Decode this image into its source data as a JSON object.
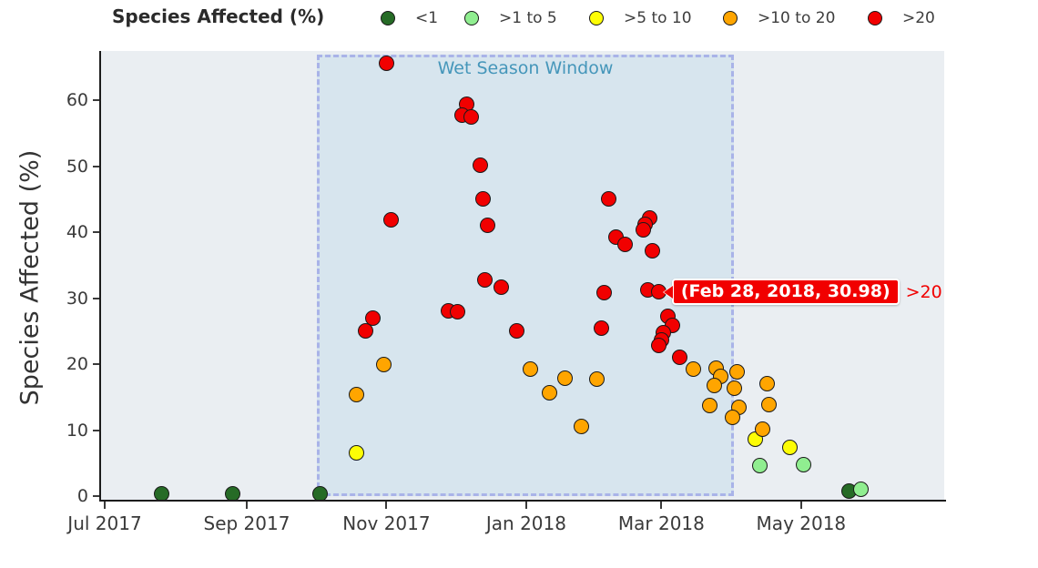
{
  "legend": {
    "title": "Species Affected (%)",
    "items": [
      {
        "label": "<1",
        "color": "#266b26"
      },
      {
        "label": ">1 to 5",
        "color": "#90ee90"
      },
      {
        "label": ">5 to 10",
        "color": "#fdfd05"
      },
      {
        "label": ">10 to 20",
        "color": "#ffa500"
      },
      {
        "label": ">20",
        "color": "#f10000"
      }
    ]
  },
  "chart_data": {
    "type": "scatter",
    "title": "",
    "xlabel": "",
    "ylabel": "Species Affected (%)",
    "x_ticks": [
      {
        "label": "Jul 2017",
        "date": "2017-07-01"
      },
      {
        "label": "Sep 2017",
        "date": "2017-09-01"
      },
      {
        "label": "Nov 2017",
        "date": "2017-11-01"
      },
      {
        "label": "Jan 2018",
        "date": "2018-01-01"
      },
      {
        "label": "Mar 2018",
        "date": "2018-03-01"
      },
      {
        "label": "May 2018",
        "date": "2018-05-01"
      }
    ],
    "y_ticks": [
      0,
      10,
      20,
      30,
      40,
      50,
      60
    ],
    "x_range": [
      "2017-06-29",
      "2018-07-02"
    ],
    "y_range": [
      0,
      67.5
    ],
    "grid": false,
    "legend_position": "top",
    "annotation": {
      "label": "Wet Season Window",
      "x_start": "2017-10-01",
      "x_end": "2018-04-01"
    },
    "tooltip": {
      "text": "(Feb 28, 2018, 30.98)",
      "series": ">20",
      "date": "2018-02-28",
      "value": 30.98
    },
    "color_thresholds": [
      {
        "max": 1,
        "color": "#266b26"
      },
      {
        "max": 5,
        "color": "#90ee90"
      },
      {
        "max": 10,
        "color": "#fdfd05"
      },
      {
        "max": 20,
        "color": "#ffa500"
      },
      {
        "max": 999,
        "color": "#f10000"
      }
    ],
    "points": [
      {
        "date": "2017-07-26",
        "value": 0.3
      },
      {
        "date": "2017-08-26",
        "value": 0.3
      },
      {
        "date": "2017-10-03",
        "value": 0.3
      },
      {
        "date": "2018-05-22",
        "value": 0.8
      },
      {
        "date": "2018-05-27",
        "value": 1.1
      },
      {
        "date": "2018-04-13",
        "value": 4.6
      },
      {
        "date": "2018-05-02",
        "value": 4.7
      },
      {
        "date": "2017-10-19",
        "value": 6.5
      },
      {
        "date": "2018-04-11",
        "value": 8.6
      },
      {
        "date": "2018-04-26",
        "value": 7.4
      },
      {
        "date": "2017-10-31",
        "value": 19.9
      },
      {
        "date": "2017-10-19",
        "value": 15.4
      },
      {
        "date": "2018-01-03",
        "value": 19.2
      },
      {
        "date": "2018-01-11",
        "value": 15.6
      },
      {
        "date": "2018-01-18",
        "value": 17.9
      },
      {
        "date": "2018-01-25",
        "value": 10.5
      },
      {
        "date": "2018-02-01",
        "value": 17.7
      },
      {
        "date": "2018-03-15",
        "value": 19.3
      },
      {
        "date": "2018-03-25",
        "value": 19.4
      },
      {
        "date": "2018-03-27",
        "value": 18.2
      },
      {
        "date": "2018-04-03",
        "value": 18.8
      },
      {
        "date": "2018-03-24",
        "value": 16.7
      },
      {
        "date": "2018-04-02",
        "value": 16.3
      },
      {
        "date": "2018-04-16",
        "value": 17.0
      },
      {
        "date": "2018-03-22",
        "value": 13.7
      },
      {
        "date": "2018-04-04",
        "value": 13.4
      },
      {
        "date": "2018-04-17",
        "value": 13.8
      },
      {
        "date": "2018-04-01",
        "value": 11.9
      },
      {
        "date": "2018-04-14",
        "value": 10.1
      },
      {
        "date": "2017-11-01",
        "value": 65.6
      },
      {
        "date": "2017-12-06",
        "value": 59.4
      },
      {
        "date": "2017-12-04",
        "value": 57.7
      },
      {
        "date": "2017-12-08",
        "value": 57.5
      },
      {
        "date": "2017-12-12",
        "value": 50.1
      },
      {
        "date": "2017-12-13",
        "value": 45.1
      },
      {
        "date": "2017-12-15",
        "value": 41.1
      },
      {
        "date": "2017-11-03",
        "value": 41.8
      },
      {
        "date": "2017-11-28",
        "value": 28.1
      },
      {
        "date": "2017-12-02",
        "value": 27.9
      },
      {
        "date": "2017-10-26",
        "value": 26.9
      },
      {
        "date": "2017-10-23",
        "value": 25.1
      },
      {
        "date": "2017-12-14",
        "value": 32.7
      },
      {
        "date": "2017-12-21",
        "value": 31.6
      },
      {
        "date": "2017-12-28",
        "value": 25.1
      },
      {
        "date": "2018-02-06",
        "value": 45.1
      },
      {
        "date": "2018-02-24",
        "value": 42.2
      },
      {
        "date": "2018-02-22",
        "value": 41.2
      },
      {
        "date": "2018-02-21",
        "value": 40.4
      },
      {
        "date": "2018-02-09",
        "value": 39.2
      },
      {
        "date": "2018-02-13",
        "value": 38.2
      },
      {
        "date": "2018-02-25",
        "value": 37.2
      },
      {
        "date": "2018-02-04",
        "value": 30.8
      },
      {
        "date": "2018-02-23",
        "value": 31.3
      },
      {
        "date": "2018-02-28",
        "value": 30.98
      },
      {
        "date": "2018-02-03",
        "value": 25.5
      },
      {
        "date": "2018-03-04",
        "value": 27.3
      },
      {
        "date": "2018-03-06",
        "value": 25.9
      },
      {
        "date": "2018-03-02",
        "value": 24.7
      },
      {
        "date": "2018-03-01",
        "value": 23.6
      },
      {
        "date": "2018-02-28",
        "value": 22.8
      },
      {
        "date": "2018-03-09",
        "value": 21.0
      }
    ]
  }
}
